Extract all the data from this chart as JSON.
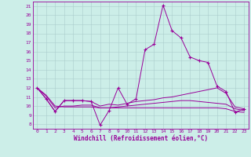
{
  "background_color": "#cceee8",
  "line_color": "#990099",
  "grid_color": "#aacccc",
  "xlabel": "Windchill (Refroidissement éolien,°C)",
  "x_ticks": [
    0,
    1,
    2,
    3,
    4,
    5,
    6,
    7,
    8,
    9,
    10,
    11,
    12,
    13,
    14,
    15,
    16,
    17,
    18,
    19,
    20,
    21,
    22,
    23
  ],
  "y_ticks": [
    8,
    9,
    10,
    11,
    12,
    13,
    14,
    15,
    16,
    17,
    18,
    19,
    20,
    21
  ],
  "ylim": [
    7.5,
    21.5
  ],
  "xlim": [
    -0.5,
    23.5
  ],
  "series": [
    [
      12.0,
      10.8,
      9.4,
      10.6,
      10.6,
      10.6,
      10.5,
      7.9,
      9.5,
      12.0,
      10.2,
      10.8,
      16.2,
      16.8,
      21.1,
      18.3,
      17.5,
      15.4,
      15.0,
      14.8,
      12.2,
      11.6,
      9.3,
      9.7
    ],
    [
      12.0,
      10.8,
      9.4,
      10.6,
      10.6,
      10.6,
      10.5,
      10.0,
      10.2,
      10.1,
      10.3,
      10.5,
      10.6,
      10.7,
      10.9,
      11.0,
      11.2,
      11.4,
      11.6,
      11.8,
      12.0,
      11.4,
      9.9,
      9.7
    ],
    [
      12.0,
      11.1,
      9.8,
      10.0,
      10.0,
      10.1,
      10.1,
      9.8,
      9.8,
      9.9,
      10.0,
      10.1,
      10.2,
      10.3,
      10.4,
      10.5,
      10.6,
      10.6,
      10.5,
      10.4,
      10.3,
      10.2,
      9.7,
      9.5
    ],
    [
      12.0,
      11.2,
      10.0,
      9.9,
      9.9,
      9.9,
      9.9,
      9.8,
      9.8,
      9.8,
      9.8,
      9.8,
      9.8,
      9.8,
      9.8,
      9.8,
      9.8,
      9.8,
      9.8,
      9.8,
      9.8,
      9.7,
      9.4,
      9.3
    ]
  ]
}
